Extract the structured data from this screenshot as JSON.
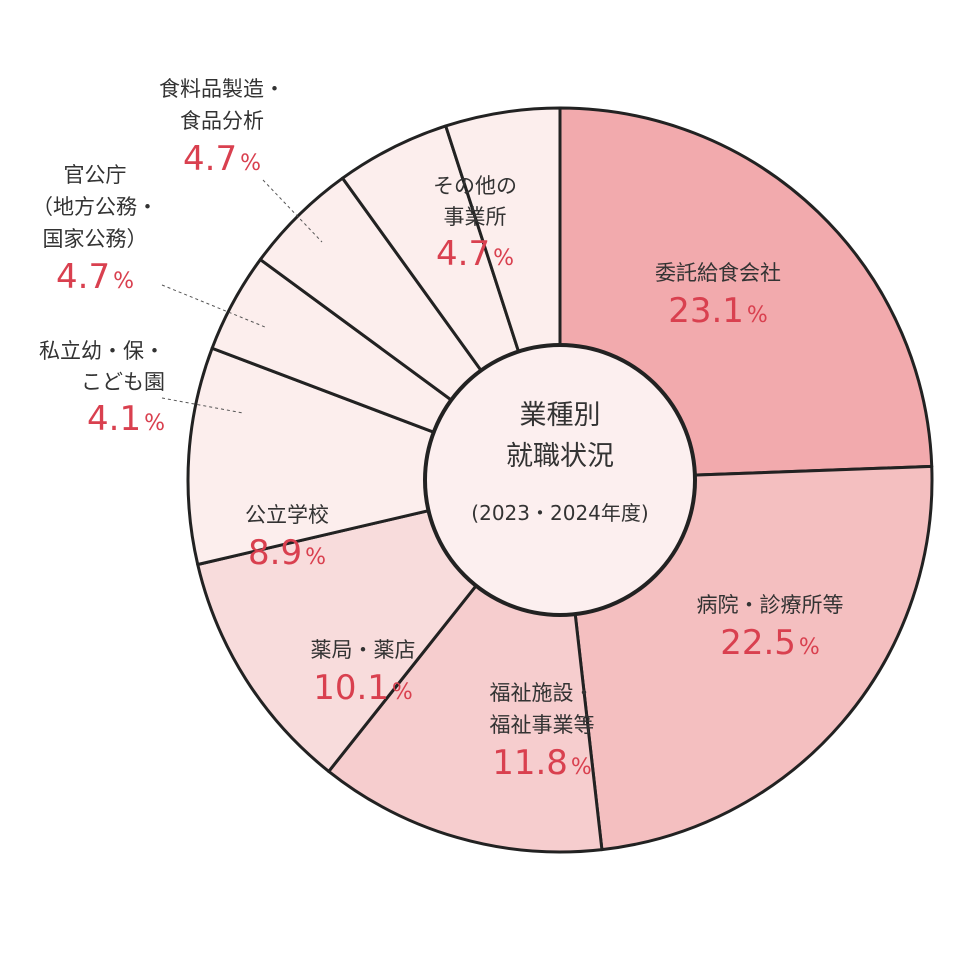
{
  "chart_data": {
    "type": "pie",
    "title": "業種別就職状況",
    "center": {
      "line1": "業種別",
      "line2": "就職状況",
      "subtitle": "(2023・2024年度)"
    },
    "unit": "%",
    "slices": [
      {
        "label": [
          "委託給食会社"
        ],
        "value": 23.1,
        "value_text": "23.1",
        "color": "#f2aaad"
      },
      {
        "label": [
          "病院・診療所等"
        ],
        "value": 22.5,
        "value_text": "22.5",
        "color": "#f4bfc0"
      },
      {
        "label": [
          "福祉施設・",
          "福祉事業等"
        ],
        "value": 11.8,
        "value_text": "11.8",
        "color": "#f6cdce"
      },
      {
        "label": [
          "薬局・薬店"
        ],
        "value": 10.1,
        "value_text": "10.1",
        "color": "#f8dcdc"
      },
      {
        "label": [
          "公立学校"
        ],
        "value": 8.9,
        "value_text": "8.9",
        "color": "#fceeed"
      },
      {
        "label": [
          "私立幼・保・",
          "こども園"
        ],
        "value": 4.1,
        "value_text": "4.1",
        "color": "#fceeed"
      },
      {
        "label": [
          "官公庁",
          "（地方公務・",
          "国家公務）"
        ],
        "value": 4.7,
        "value_text": "4.7",
        "color": "#fceeed"
      },
      {
        "label": [
          "食料品製造・",
          "食品分析"
        ],
        "value": 4.7,
        "value_text": "4.7",
        "color": "#fceeed"
      },
      {
        "label": [
          "その他の",
          "事業所"
        ],
        "value": 4.7,
        "value_text": "4.7",
        "color": "#fceeed"
      }
    ]
  }
}
